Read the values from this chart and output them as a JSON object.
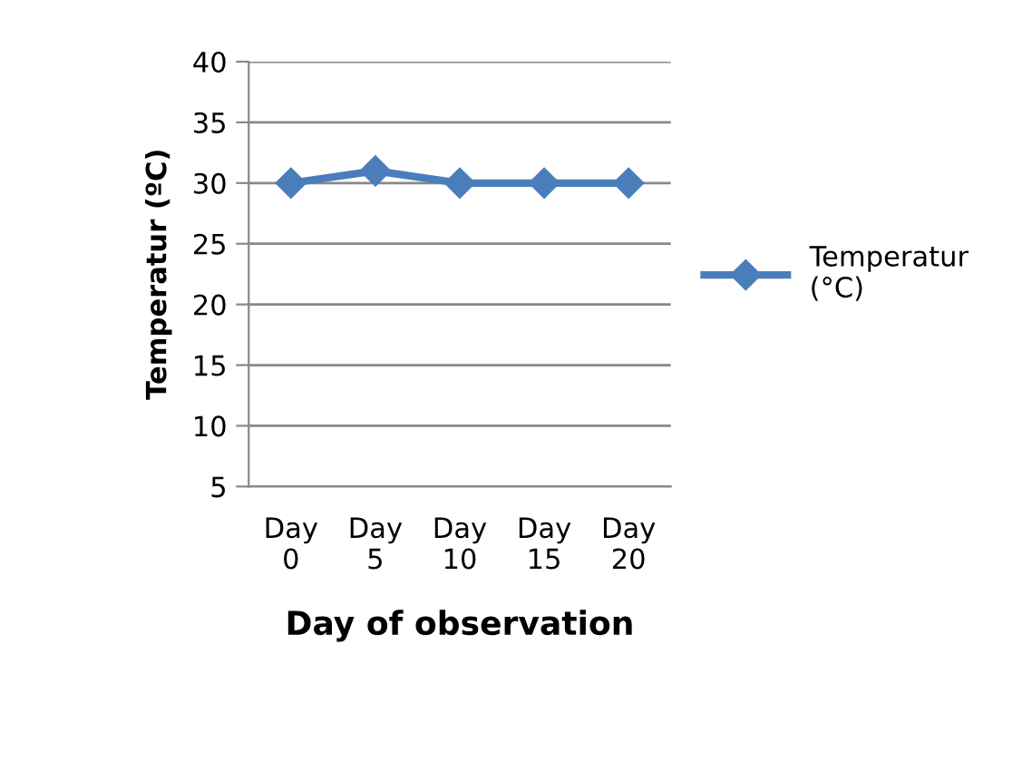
{
  "chart_data": {
    "type": "line",
    "xlabel": "Day of observation",
    "ylabel": "Temperatur (ºC)",
    "categories": [
      "Day\n0",
      "Day\n5",
      "Day\n10",
      "Day\n15",
      "Day\n20"
    ],
    "series": [
      {
        "name": "Temperatur\n(°C)",
        "color": "#4a7ebb",
        "values": [
          30,
          31,
          30,
          30,
          30
        ]
      }
    ],
    "ylim": [
      5,
      40
    ],
    "yticks": [
      5,
      10,
      15,
      20,
      25,
      30,
      35,
      40
    ],
    "grid": "y",
    "legend": "right",
    "marker": "diamond",
    "line_style": "solid"
  }
}
